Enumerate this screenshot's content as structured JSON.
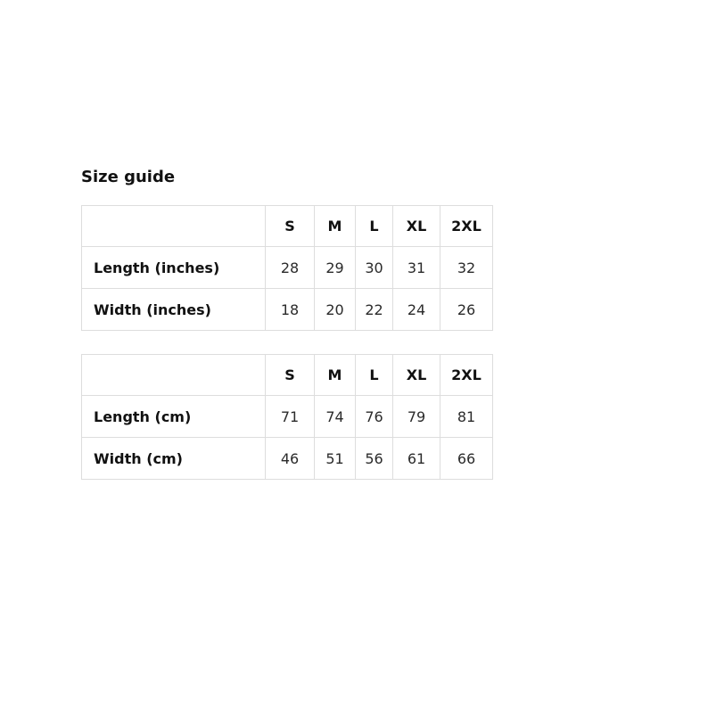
{
  "section": {
    "title": "Size guide"
  },
  "colors": {
    "background": "#ffffff",
    "border": "#dddddd",
    "heading_text": "#111111",
    "value_text": "#2b2b2b"
  },
  "tables": [
    {
      "name": "inches",
      "columns": [
        "S",
        "M",
        "L",
        "XL",
        "2XL"
      ],
      "rows": [
        {
          "label": "Length (inches)",
          "values": [
            "28",
            "29",
            "30",
            "31",
            "32"
          ]
        },
        {
          "label": "Width (inches)",
          "values": [
            "18",
            "20",
            "22",
            "24",
            "26"
          ]
        }
      ]
    },
    {
      "name": "cm",
      "columns": [
        "S",
        "M",
        "L",
        "XL",
        "2XL"
      ],
      "rows": [
        {
          "label": "Length (cm)",
          "values": [
            "71",
            "74",
            "76",
            "79",
            "81"
          ]
        },
        {
          "label": "Width (cm)",
          "values": [
            "46",
            "51",
            "56",
            "61",
            "66"
          ]
        }
      ]
    }
  ]
}
